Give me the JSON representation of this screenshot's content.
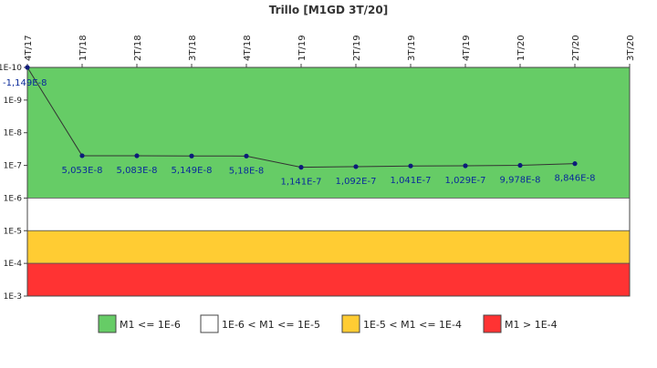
{
  "chart_data": {
    "type": "line",
    "title": "Trillo [M1GD 3T/20]",
    "xlabel": "",
    "ylabel": "",
    "y_scale": "log",
    "y_inverted": true,
    "ylim": [
      1e-10,
      0.001
    ],
    "y_ticks": [
      {
        "value": 1e-10,
        "label": "1E-10"
      },
      {
        "value": 1e-09,
        "label": "1E-9"
      },
      {
        "value": 1e-08,
        "label": "1E-8"
      },
      {
        "value": 1e-07,
        "label": "1E-7"
      },
      {
        "value": 1e-06,
        "label": "1E-6"
      },
      {
        "value": 1e-05,
        "label": "1E-5"
      },
      {
        "value": 0.0001,
        "label": "1E-4"
      },
      {
        "value": 0.001,
        "label": "1E-3"
      }
    ],
    "categories": [
      "4T/17",
      "1T/18",
      "2T/18",
      "3T/18",
      "4T/18",
      "1T/19",
      "2T/19",
      "3T/19",
      "4T/19",
      "1T/20",
      "2T/20",
      "3T/20"
    ],
    "series": [
      {
        "values": [
          -1.149e-08,
          5.053e-08,
          5.083e-08,
          5.149e-08,
          5.18e-08,
          1.141e-07,
          1.092e-07,
          1.041e-07,
          1.029e-07,
          9.978e-08,
          8.846e-08,
          null
        ],
        "labels": [
          "-1,149E-8",
          "5,053E-8",
          "5,083E-8",
          "5,149E-8",
          "5,18E-8",
          "1,141E-7",
          "1,092E-7",
          "1,041E-7",
          "1,029E-7",
          "9,978E-8",
          "8,846E-8",
          ""
        ],
        "color": "#333333",
        "marker_color": "#0d1b7a"
      }
    ],
    "bands": [
      {
        "from": 1e-10,
        "to": 1e-06,
        "color": "#66cc66",
        "legend": "M1 <= 1E-6"
      },
      {
        "from": 1e-06,
        "to": 1e-05,
        "color": "#ffffff",
        "legend": "1E-6 < M1 <= 1E-5"
      },
      {
        "from": 1e-05,
        "to": 0.0001,
        "color": "#ffcc33",
        "legend": "1E-5 < M1 <= 1E-4"
      },
      {
        "from": 0.0001,
        "to": 0.001,
        "color": "#ff3333",
        "legend": "M1 > 1E-4"
      }
    ],
    "grid": false,
    "legend_position": "bottom"
  }
}
